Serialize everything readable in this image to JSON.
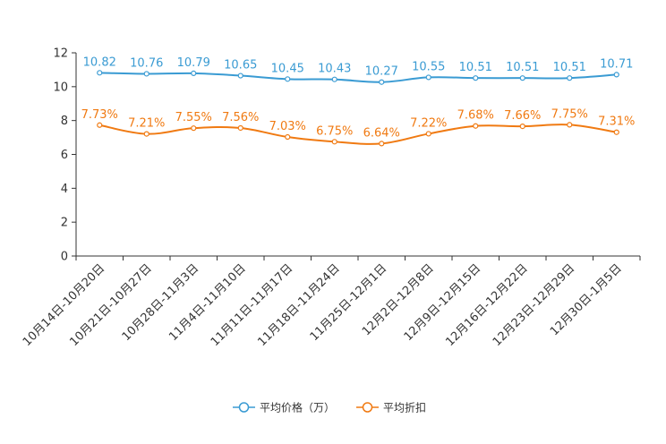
{
  "chart_data": {
    "type": "line",
    "title": "",
    "xlabel": "",
    "ylabel": "",
    "ylim": [
      0,
      12
    ],
    "yticks": [
      "0",
      "2",
      "4",
      "6",
      "8",
      "10",
      "12"
    ],
    "grid": false,
    "legend_position": "bottom-center",
    "categories": [
      "10月14日-10月20日",
      "10月21日-10月27日",
      "10月28日-11月3日",
      "11月4日-11月10日",
      "11月11日-11月17日",
      "11月18日-11月24日",
      "11月25日-12月1日",
      "12月2日-12月8日",
      "12月9日-12月15日",
      "12月16日-12月22日",
      "12月23日-12月29日",
      "12月30日-1月5日"
    ],
    "series": [
      {
        "name": "平均价格（万）",
        "color": "#3a9bd3",
        "values": [
          10.82,
          10.76,
          10.79,
          10.65,
          10.45,
          10.43,
          10.27,
          10.55,
          10.51,
          10.51,
          10.51,
          10.71
        ],
        "labels": [
          "10.82",
          "10.76",
          "10.79",
          "10.65",
          "10.45",
          "10.43",
          "10.27",
          "10.55",
          "10.51",
          "10.51",
          "10.51",
          "10.71"
        ]
      },
      {
        "name": "平均折扣",
        "color": "#f07a12",
        "values": [
          7.73,
          7.21,
          7.55,
          7.56,
          7.03,
          6.75,
          6.64,
          7.22,
          7.68,
          7.66,
          7.75,
          7.31
        ],
        "labels": [
          "7.73%",
          "7.21%",
          "7.55%",
          "7.56%",
          "7.03%",
          "6.75%",
          "6.64%",
          "7.22%",
          "7.68%",
          "7.66%",
          "7.75%",
          "7.31%"
        ]
      }
    ]
  }
}
